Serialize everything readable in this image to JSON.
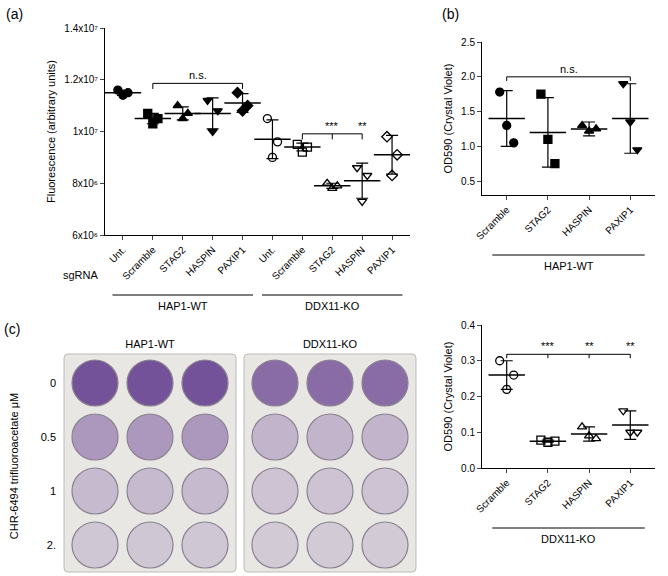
{
  "chart_data": [
    {
      "type": "scatter",
      "title": "(a)",
      "y_label": "Fluorescence (arbitrary units)",
      "x_label": "sgRNA",
      "color": "#000000",
      "grid": false,
      "ylim": [
        6000000,
        14000000
      ],
      "yticks": [
        {
          "value": 6000000,
          "label": "6x10⁶"
        },
        {
          "value": 8000000,
          "label": "8x10⁶"
        },
        {
          "value": 10000000,
          "label": "1x10⁷"
        },
        {
          "value": 12000000,
          "label": "1.2x10⁷"
        },
        {
          "value": 14000000,
          "label": "1.4x10⁷"
        }
      ],
      "groups": [
        {
          "label": "HAP1-WT",
          "marker": "filled",
          "categories": [
            "Unt.",
            "Scramble",
            "STAG2",
            "HASPIN",
            "PAXIP1"
          ],
          "points": [
            [
              11600000,
              11400000,
              11500000
            ],
            [
              10700000,
              10300000,
              10500000
            ],
            [
              11000000,
              10500000,
              10700000
            ],
            [
              11200000,
              10000000,
              10800000
            ],
            [
              11500000,
              10800000,
              11000000
            ]
          ],
          "values": [
            11500000,
            10500000,
            10700000,
            10700000,
            11100000
          ],
          "errors": [
            100000,
            200000,
            250000,
            600000,
            360000
          ]
        },
        {
          "label": "DDX11-KO",
          "marker": "open",
          "categories": [
            "Unt.",
            "Scramble",
            "STAG2",
            "HASPIN",
            "PAXIP1"
          ],
          "points": [
            [
              10500000,
              9000000,
              9600000
            ],
            [
              9500000,
              9200000,
              9400000
            ],
            [
              8000000,
              7800000,
              7900000
            ],
            [
              8600000,
              7300000,
              8300000
            ],
            [
              9800000,
              8300000,
              9100000
            ]
          ],
          "values": [
            9700000,
            9400000,
            7900000,
            8100000,
            9100000
          ],
          "errors": [
            750000,
            150000,
            100000,
            680000,
            750000
          ]
        }
      ],
      "annotations": [
        {
          "group": 0,
          "from": 1,
          "to": 4,
          "text": "n.s."
        },
        {
          "group": 1,
          "from": 1,
          "to": 2,
          "text": "***"
        },
        {
          "group": 1,
          "from": 1,
          "to": 3,
          "text": "**"
        }
      ]
    },
    {
      "type": "scatter",
      "title": "(b)",
      "y_label": "OD590 (Crystal Violet)",
      "color": "#000000",
      "grid": false,
      "ylim": [
        0.3,
        2.5
      ],
      "yticks": [
        0.5,
        {
          "value": 1,
          "label": "1.0"
        },
        1.5,
        {
          "value": 2,
          "label": "2.0"
        },
        2.5
      ],
      "groups": [
        {
          "label": "HAP1-WT",
          "marker": "filled",
          "categories": [
            "Scramble",
            "STAG2",
            "HASPIN",
            "PAXIP1"
          ],
          "points": [
            [
              1.78,
              1.3,
              1.05
            ],
            [
              1.75,
              1.1,
              0.75
            ],
            [
              1.3,
              1.22,
              1.25
            ],
            [
              1.9,
              1.35,
              0.95
            ]
          ],
          "values": [
            1.4,
            1.2,
            1.25,
            1.4
          ],
          "errors": [
            0.4,
            0.5,
            0.1,
            0.5
          ]
        }
      ],
      "annotations": [
        {
          "group": 0,
          "from": 0,
          "to": 3,
          "text": "n.s."
        }
      ]
    },
    {
      "type": "scatter",
      "y_label": "OD590 (Crystal Violet)",
      "color": "#000000",
      "grid": false,
      "ylim": [
        0,
        0.4
      ],
      "yticks": [
        {
          "value": 0,
          "label": "0.0"
        },
        0.1,
        0.2,
        0.3,
        0.4
      ],
      "groups": [
        {
          "label": "DDX11-KO",
          "marker": "open",
          "categories": [
            "Scramble",
            "STAG2",
            "HASPIN",
            "PAXIP1"
          ],
          "points": [
            [
              0.3,
              0.22,
              0.26
            ],
            [
              0.078,
              0.072,
              0.075
            ],
            [
              0.115,
              0.09,
              0.082
            ],
            [
              0.16,
              0.1,
              0.1
            ]
          ],
          "values": [
            0.26,
            0.075,
            0.095,
            0.12
          ],
          "errors": [
            0.04,
            0.003,
            0.02,
            0.04
          ]
        }
      ],
      "annotations": [
        {
          "group": 0,
          "from": 0,
          "to": 1,
          "text": "***"
        },
        {
          "group": 0,
          "from": 0,
          "to": 2,
          "text": "**"
        },
        {
          "group": 0,
          "from": 0,
          "to": 3,
          "text": "**"
        }
      ]
    }
  ],
  "plate": {
    "title": "(c)",
    "y_label": "CHR-6494 trifluoroacetate μM",
    "columns": [
      "HAP1-WT",
      "DDX11-KO"
    ],
    "rows": [
      "0",
      "0.5",
      "1",
      "2."
    ]
  }
}
